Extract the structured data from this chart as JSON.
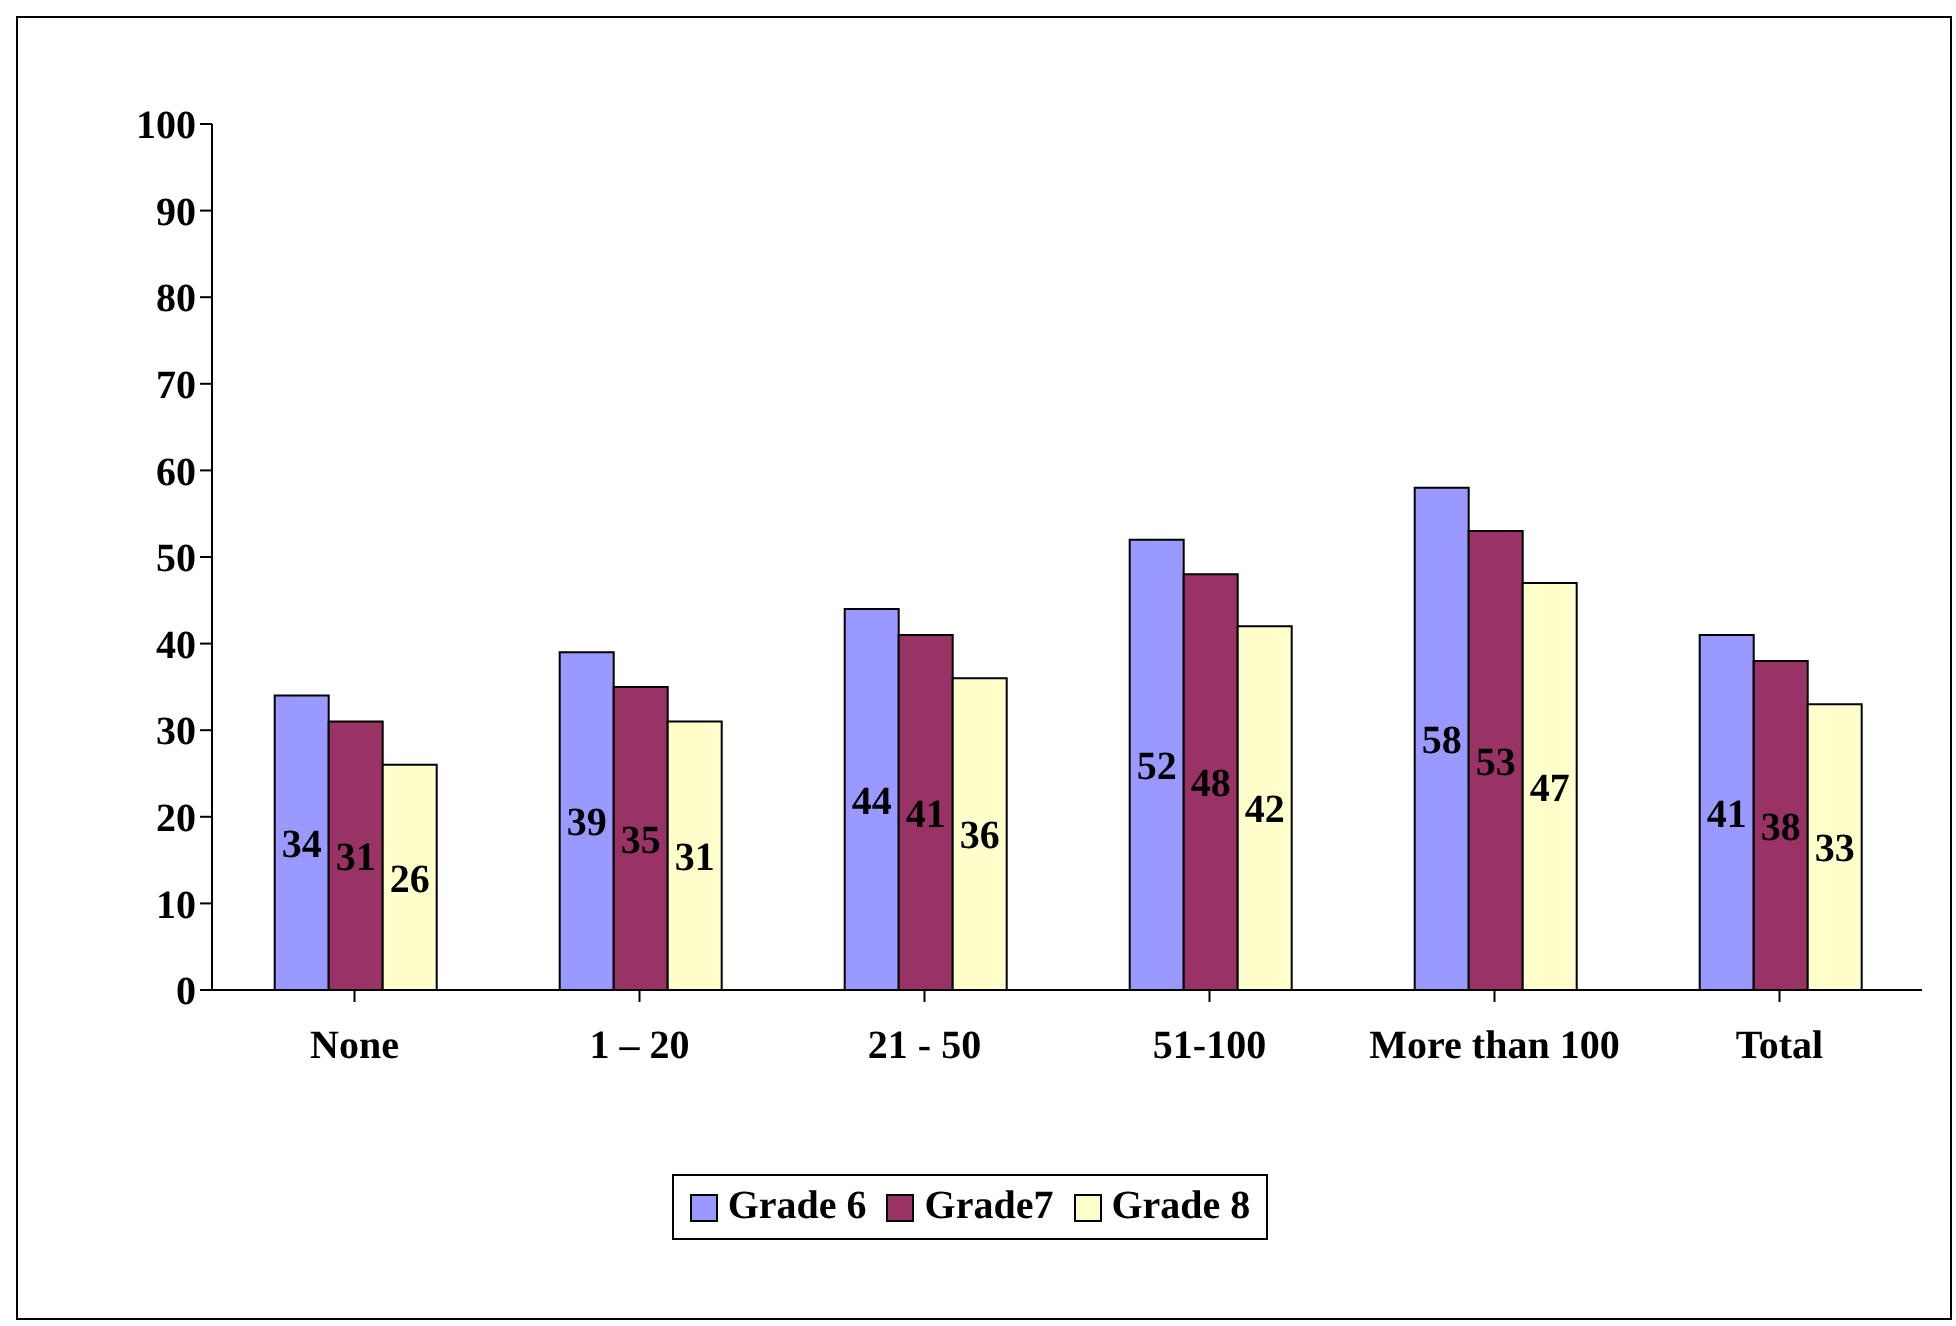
{
  "chart_data": {
    "type": "bar",
    "categories": [
      "None",
      "1 – 20",
      "21 - 50",
      "51-100",
      "More than 100",
      "Total"
    ],
    "series": [
      {
        "name": "Grade 6",
        "color": "#9999ff",
        "values": [
          34,
          39,
          44,
          52,
          58,
          41
        ]
      },
      {
        "name": "Grade7",
        "color": "#993366",
        "values": [
          31,
          35,
          41,
          48,
          53,
          38
        ]
      },
      {
        "name": "Grade 8",
        "color": "#ffffcc",
        "values": [
          26,
          31,
          36,
          42,
          47,
          33
        ]
      }
    ],
    "ylim": [
      0,
      100
    ],
    "yticks": [
      0,
      10,
      20,
      30,
      40,
      50,
      60,
      70,
      80,
      90,
      100
    ],
    "data_labels": true,
    "legend": "bottom"
  }
}
